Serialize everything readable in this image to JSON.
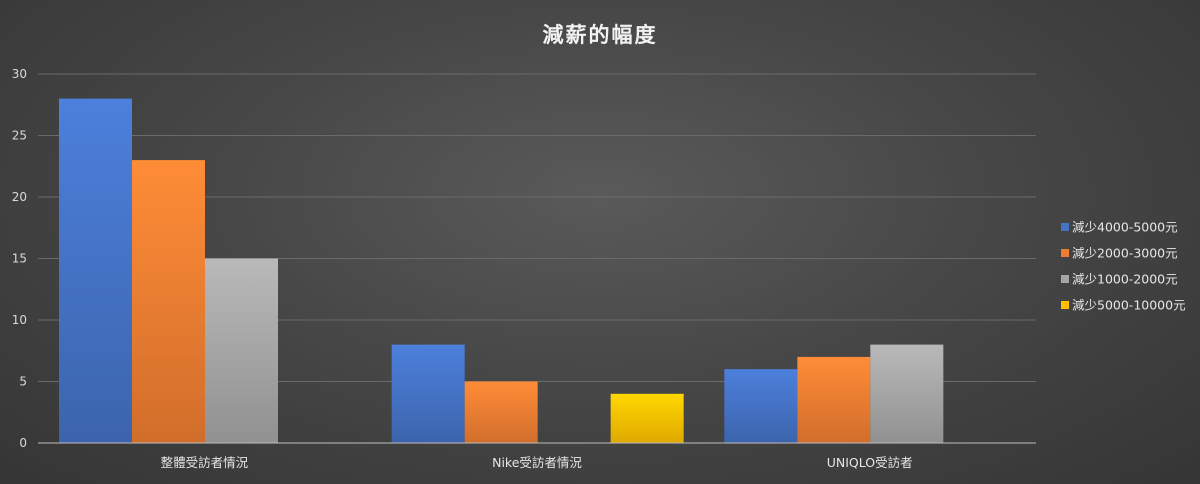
{
  "chart_data": {
    "type": "bar",
    "title": "減薪的幅度",
    "xlabel": "",
    "ylabel": "",
    "categories": [
      "整體受訪者情況",
      "Nike受訪者情況",
      "UNIQLO受訪者"
    ],
    "series": [
      {
        "name": "減少4000-5000元",
        "color": "#4472c4",
        "values": [
          28,
          8,
          6
        ]
      },
      {
        "name": "減少2000-3000元",
        "color": "#ed7d31",
        "values": [
          23,
          5,
          7
        ]
      },
      {
        "name": "減少1000-2000元",
        "color": "#a5a5a5",
        "values": [
          15,
          null,
          8
        ]
      },
      {
        "name": "減少5000-10000元",
        "color": "#ffc000",
        "values": [
          null,
          4,
          null
        ]
      }
    ],
    "ylim": [
      0,
      30
    ],
    "yticks": [
      0,
      5,
      10,
      15,
      20,
      25,
      30
    ],
    "grid": true,
    "legend_position": "right"
  }
}
